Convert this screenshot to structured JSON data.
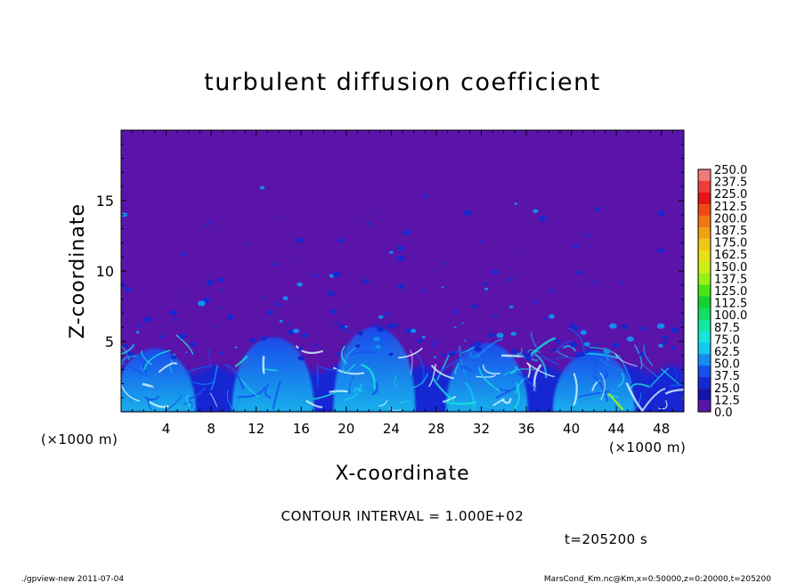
{
  "chart_data": {
    "type": "heatmap",
    "title": "turbulent diffusion coefficient",
    "xlabel": "X-coordinate",
    "ylabel": "Z-coordinate",
    "x_unit": "(×1000 m)",
    "y_unit": "(×1000 m)",
    "xlim": [
      0,
      50
    ],
    "ylim": [
      0,
      20
    ],
    "x_ticks": [
      4,
      8,
      12,
      16,
      20,
      24,
      28,
      32,
      36,
      40,
      44,
      48
    ],
    "y_ticks": [
      5,
      10,
      15
    ],
    "colorbar_levels": [
      "250.0",
      "237.5",
      "225.0",
      "212.5",
      "200.0",
      "187.5",
      "175.0",
      "162.5",
      "150.0",
      "137.5",
      "125.0",
      "112.5",
      "100.0",
      "87.5",
      "75.0",
      "62.5",
      "50.0",
      "37.5",
      "25.0",
      "12.5",
      "0.0"
    ],
    "colorbar_colors": [
      "#f07a7a",
      "#f03c3c",
      "#e61414",
      "#f04a14",
      "#f07814",
      "#f0a014",
      "#f0c814",
      "#e8e014",
      "#c8f014",
      "#96f014",
      "#46e614",
      "#14d232",
      "#14dc64",
      "#14e6a0",
      "#14e6d8",
      "#14c8f0",
      "#148cf0",
      "#1450f0",
      "#1428d2",
      "#1414aa",
      "#5a14aa"
    ],
    "regions": [
      {
        "x_center": 3,
        "peak_height": 4.5,
        "value": 40
      },
      {
        "x_center": 13.5,
        "peak_height": 5.3,
        "value": 45
      },
      {
        "x_center": 22.5,
        "peak_height": 6.0,
        "value": 50
      },
      {
        "x_center": 32.5,
        "peak_height": 4.9,
        "value": 40
      },
      {
        "x_center": 42,
        "peak_height": 4.3,
        "value": 40
      }
    ]
  },
  "contour_text": "CONTOUR INTERVAL = 1.000E+02",
  "time_text": "t=205200 s",
  "footer_left": "./gpview-new   2011-07-04",
  "footer_right": "MarsCond_Km.nc@Km,x=0:50000,z=0:20000,t=205200"
}
